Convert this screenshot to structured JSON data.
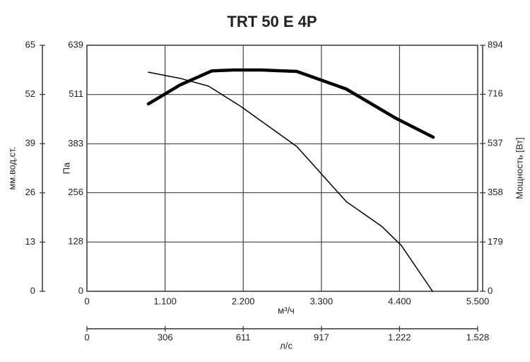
{
  "chart_data": {
    "type": "line",
    "title": "TRT 50 E 4P",
    "xlabel": "м³/ч",
    "ylabel": "Па",
    "y2label": "Мощность [Вт]",
    "y3label": "мм.вод.ст.",
    "x2label": "л/с",
    "xlim": [
      0,
      5500
    ],
    "xticks": [
      0,
      {
        "value": 1100,
        "label": "1.100"
      },
      {
        "value": 2200,
        "label": "2.200"
      },
      {
        "value": 3300,
        "label": "3.300"
      },
      {
        "value": 4400,
        "label": "4.400"
      },
      {
        "value": 5500,
        "label": "5.500"
      }
    ],
    "ylim": [
      0,
      639
    ],
    "yticks": [
      0,
      128,
      256,
      383,
      511,
      639
    ],
    "y2lim": [
      0,
      894
    ],
    "y2ticks": [
      0,
      179,
      358,
      537,
      716,
      894
    ],
    "y3lim": [
      0,
      65
    ],
    "y3ticks": [
      0,
      13,
      26,
      39,
      52,
      65
    ],
    "x2lim": [
      0,
      1528
    ],
    "x2ticks": [
      0,
      306,
      611,
      917,
      {
        "value": 1222,
        "label": "1.222"
      },
      {
        "value": 1528,
        "label": "1.528"
      }
    ],
    "grid": true,
    "series": [
      {
        "color": "#000000",
        "line_width": 1.5,
        "x": [
          865,
          1313,
          1711,
          2158,
          2954,
          3650,
          4147,
          4425,
          4864
        ],
        "values": [
          569,
          553,
          533,
          481,
          376,
          233,
          169,
          119,
          0
        ]
      },
      {
        "color": "#000000",
        "line_width": 4.5,
        "axis": "y2",
        "x": [
          865,
          1313,
          1760,
          2059,
          2457,
          2954,
          3650,
          4346,
          4873
        ],
        "values": [
          681,
          750,
          801,
          804,
          804,
          799,
          735,
          629,
          560
        ]
      }
    ]
  }
}
